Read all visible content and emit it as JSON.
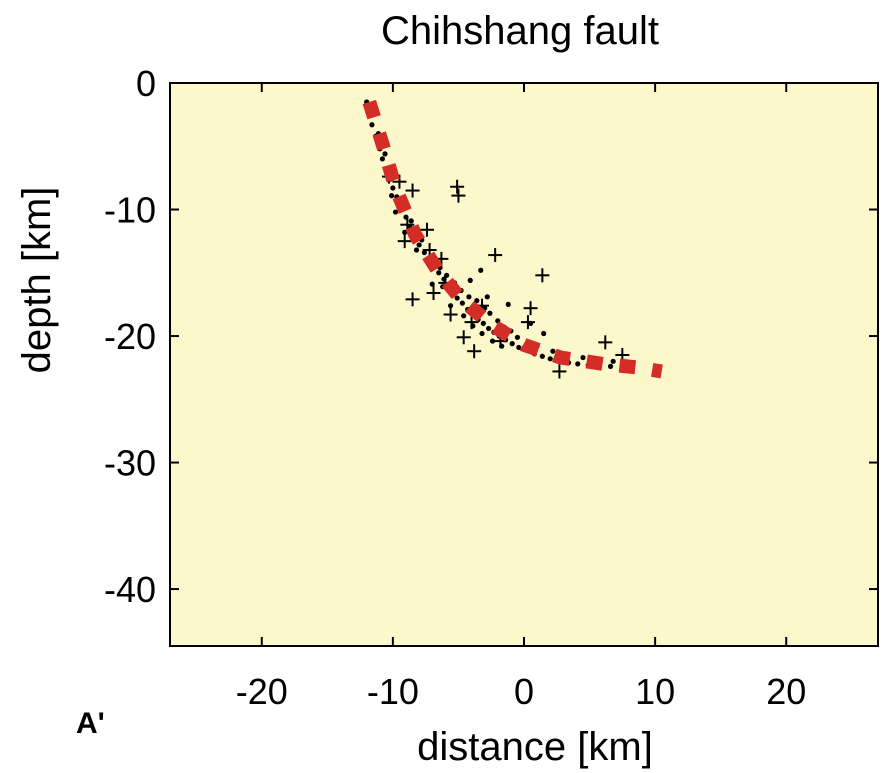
{
  "chart_data": {
    "type": "scatter",
    "title": "Chihshang fault",
    "xlabel": "distance [km]",
    "ylabel": "depth [km]",
    "corner_label": "A'",
    "xlim": [
      -27,
      27
    ],
    "ylim": [
      -44.5,
      0
    ],
    "xticks": [
      -20,
      -10,
      0,
      10,
      20
    ],
    "yticks": [
      0,
      -10,
      -20,
      -30,
      -40
    ],
    "background_color": "#fdf8cb",
    "grid": false,
    "series": [
      {
        "marker": "dot",
        "color": "#000000",
        "points": [
          [
            -12,
            -1.5
          ],
          [
            -11.8,
            -2.5
          ],
          [
            -11.6,
            -3.3
          ],
          [
            -11.3,
            -4.2
          ],
          [
            -11.0,
            -5.2
          ],
          [
            -10.8,
            -6.0
          ],
          [
            -10.5,
            -7.0
          ],
          [
            -10.2,
            -7.6
          ],
          [
            -10.0,
            -8.3
          ],
          [
            -9.7,
            -9.0
          ],
          [
            -9.4,
            -9.8
          ],
          [
            -9.0,
            -10.6
          ],
          [
            -8.7,
            -11.4
          ],
          [
            -8.3,
            -12.0
          ],
          [
            -8.0,
            -12.8
          ],
          [
            -7.6,
            -13.4
          ],
          [
            -7.2,
            -14.1
          ],
          [
            -6.8,
            -14.5
          ],
          [
            -6.5,
            -15.0
          ],
          [
            -6.1,
            -15.5
          ],
          [
            -5.8,
            -16.0
          ],
          [
            -5.4,
            -16.5
          ],
          [
            -5.1,
            -17.0
          ],
          [
            -4.7,
            -17.4
          ],
          [
            -4.3,
            -17.9
          ],
          [
            -3.9,
            -18.3
          ],
          [
            -3.5,
            -18.7
          ],
          [
            -3.1,
            -19.0
          ],
          [
            -2.7,
            -19.4
          ],
          [
            -2.3,
            -19.7
          ],
          [
            -1.9,
            -20.0
          ],
          [
            -1.4,
            -20.3
          ],
          [
            -0.9,
            -20.6
          ],
          [
            -0.4,
            -20.9
          ],
          [
            0.2,
            -21.1
          ],
          [
            0.8,
            -21.4
          ],
          [
            1.4,
            -21.6
          ],
          [
            2.0,
            -21.8
          ],
          [
            2.7,
            -21.9
          ],
          [
            3.4,
            -22.1
          ],
          [
            4.1,
            -22.2
          ],
          [
            4.9,
            -22.3
          ],
          [
            5.7,
            -22.3
          ],
          [
            6.6,
            -22.4
          ],
          [
            7.5,
            -22.4
          ],
          [
            -6.9,
            -13.9
          ],
          [
            -6.4,
            -14.6
          ],
          [
            -5.9,
            -15.2
          ],
          [
            -6.2,
            -16.1
          ],
          [
            -5.3,
            -15.8
          ],
          [
            -4.8,
            -16.4
          ],
          [
            -4.2,
            -16.9
          ],
          [
            -3.6,
            -17.2
          ],
          [
            -3.0,
            -17.8
          ],
          [
            -2.6,
            -18.2
          ],
          [
            -2.0,
            -18.8
          ],
          [
            -1.5,
            -19.3
          ],
          [
            -1.0,
            -19.6
          ],
          [
            -0.5,
            -20.1
          ],
          [
            -8.2,
            -13.2
          ],
          [
            -7.8,
            -12.4
          ],
          [
            -5.6,
            -17.6
          ],
          [
            -4.6,
            -18.4
          ],
          [
            -3.9,
            -19.2
          ],
          [
            -3.2,
            -19.8
          ],
          [
            -2.4,
            -20.4
          ],
          [
            -1.7,
            -20.8
          ],
          [
            1.0,
            -20.8
          ],
          [
            2.2,
            -21.2
          ],
          [
            3.2,
            -21.5
          ],
          [
            4.5,
            -21.7
          ],
          [
            5.6,
            -21.9
          ],
          [
            6.8,
            -22.0
          ],
          [
            -9.1,
            -11.8
          ],
          [
            -8.6,
            -10.9
          ],
          [
            -10.6,
            -5.6
          ],
          [
            -11.1,
            -4.0
          ],
          [
            -10.1,
            -8.9
          ],
          [
            -9.8,
            -10.2
          ],
          [
            -7.0,
            -15.9
          ],
          [
            -4.1,
            -15.6
          ],
          [
            -2.8,
            -16.9
          ],
          [
            0.5,
            -19.0
          ],
          [
            1.5,
            -19.8
          ],
          [
            -1.2,
            -17.5
          ],
          [
            -3.3,
            -14.8
          ]
        ]
      },
      {
        "marker": "cross",
        "color": "#000000",
        "points": [
          [
            -10.3,
            -7.4
          ],
          [
            -9.5,
            -7.8
          ],
          [
            -8.5,
            -8.5
          ],
          [
            -5.1,
            -8.2
          ],
          [
            -5.0,
            -8.9
          ],
          [
            -8.9,
            -11.2
          ],
          [
            -7.4,
            -11.6
          ],
          [
            -9.1,
            -12.5
          ],
          [
            -7.2,
            -13.2
          ],
          [
            -6.3,
            -13.9
          ],
          [
            -2.2,
            -13.6
          ],
          [
            1.4,
            -15.2
          ],
          [
            -6.0,
            -15.8
          ],
          [
            -8.5,
            -17.1
          ],
          [
            -6.9,
            -16.6
          ],
          [
            -5.6,
            -18.3
          ],
          [
            -4.0,
            -18.9
          ],
          [
            0.5,
            -17.8
          ],
          [
            0.3,
            -18.9
          ],
          [
            -3.8,
            -21.2
          ],
          [
            -1.8,
            -20.4
          ],
          [
            2.7,
            -22.8
          ],
          [
            6.2,
            -20.5
          ],
          [
            7.5,
            -21.5
          ],
          [
            -4.6,
            -20.1
          ],
          [
            -3.2,
            -17.6
          ]
        ]
      },
      {
        "marker": "dashed-line",
        "color": "#d42c26",
        "points": [
          [
            -11.8,
            -1.5
          ],
          [
            -10.8,
            -4.8
          ],
          [
            -9.8,
            -8.3
          ],
          [
            -8.3,
            -12.0
          ],
          [
            -6.6,
            -14.8
          ],
          [
            -4.8,
            -17.1
          ],
          [
            -2.5,
            -19.1
          ],
          [
            0,
            -20.7
          ],
          [
            2.8,
            -21.7
          ],
          [
            6.0,
            -22.2
          ],
          [
            8.8,
            -22.5
          ],
          [
            10.5,
            -22.8
          ]
        ]
      }
    ]
  }
}
